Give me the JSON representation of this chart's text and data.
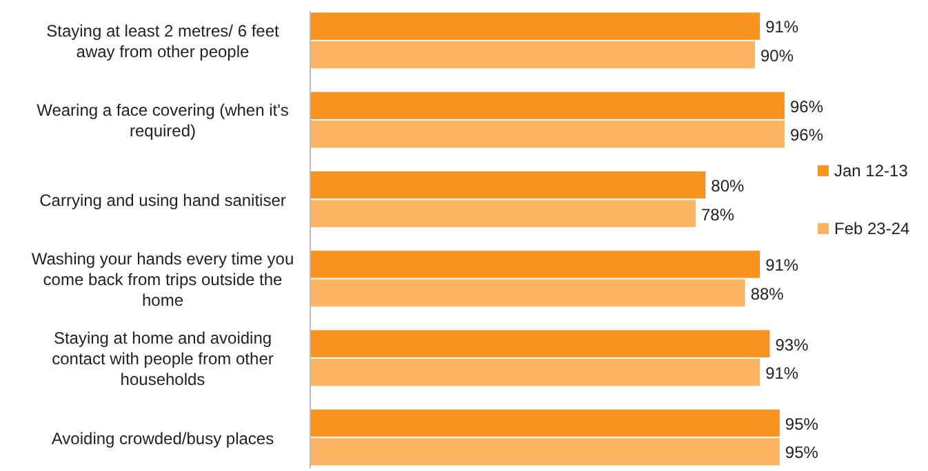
{
  "chart_data": {
    "type": "bar",
    "orientation": "horizontal",
    "categories": [
      "Staying at least 2 metres/ 6 feet away from other people",
      "Wearing a face covering (when it's required)",
      "Carrying and using hand sanitiser",
      "Washing your hands every time you come back from trips outside the home",
      "Staying at home and avoiding contact with people from other households",
      "Avoiding crowded/busy places"
    ],
    "series": [
      {
        "name": "Jan 12-13",
        "color": "#f7931e",
        "values": [
          91,
          96,
          80,
          91,
          93,
          95
        ],
        "value_labels": [
          "91%",
          "96%",
          "80%",
          "91%",
          "93%",
          "95%"
        ]
      },
      {
        "name": "Feb 23-24",
        "color": "#fbb461",
        "values": [
          90,
          96,
          78,
          88,
          91,
          95
        ],
        "value_labels": [
          "90%",
          "96%",
          "78%",
          "88%",
          "91%",
          "95%"
        ]
      }
    ],
    "legend": "right"
  }
}
